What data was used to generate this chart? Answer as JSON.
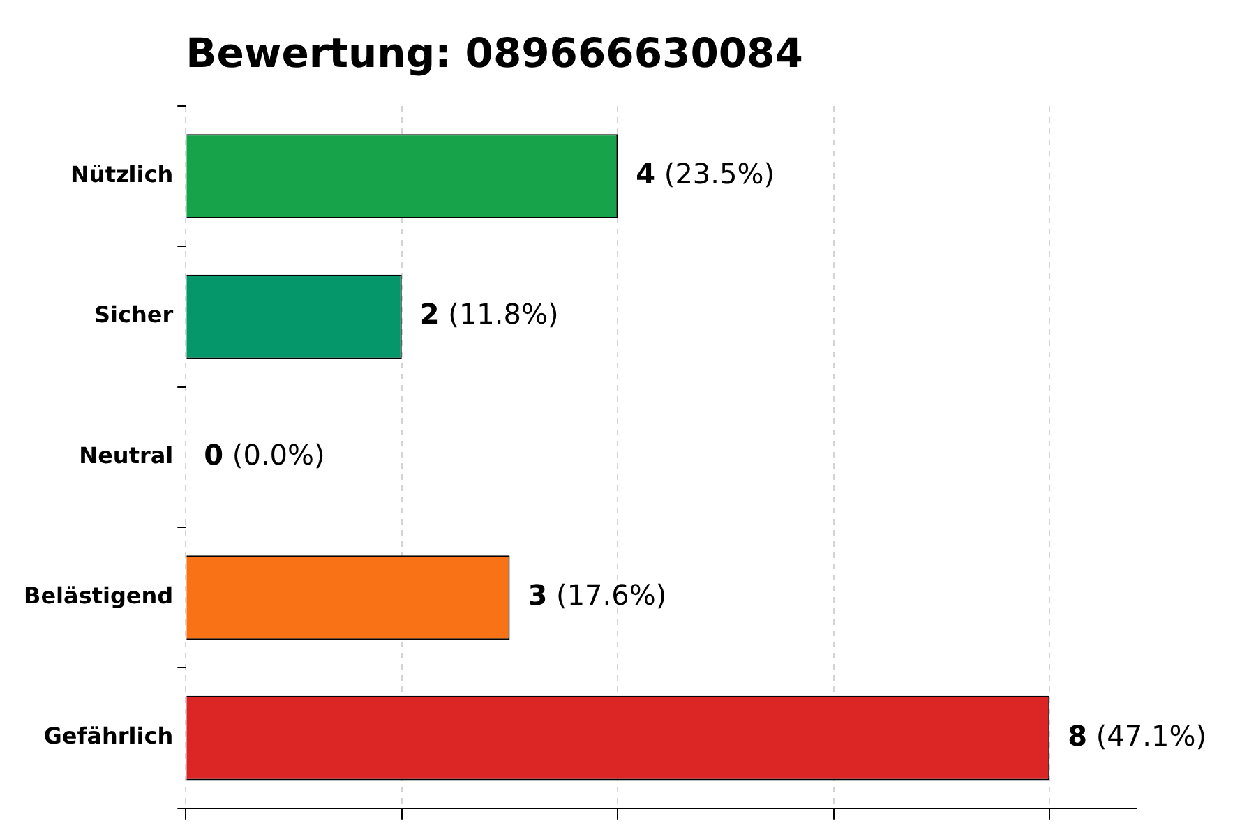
{
  "chart_data": {
    "type": "bar",
    "orientation": "horizontal",
    "title": "Bewertung: 089666630084",
    "categories": [
      "Nützlich",
      "Sicher",
      "Neutral",
      "Belästigend",
      "Gefährlich"
    ],
    "values": [
      4,
      2,
      0,
      3,
      8
    ],
    "colors": [
      "#16a34a",
      "#059669",
      "#6b7280",
      "#f97316",
      "#dc2626"
    ],
    "value_labels": [
      "4 (23.5%)",
      "2 (11.8%)",
      "0 (0.0%)",
      "3 (17.6%)",
      "8 (47.1%)"
    ],
    "xlim": [
      0,
      8.8
    ],
    "xticks": [
      0,
      2,
      4,
      6,
      8
    ],
    "tick_labels": "y",
    "grid": "x",
    "legend": false
  }
}
